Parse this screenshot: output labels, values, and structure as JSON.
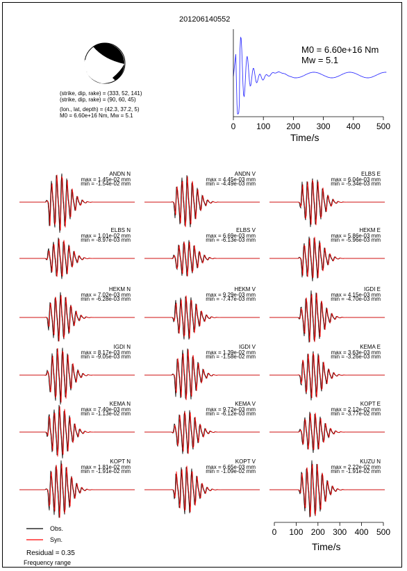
{
  "event": {
    "id": "201206140552",
    "mechanism_lines": [
      "(strike, dip, rake) = (333, 52, 141)",
      "(strike, dip, rake) = (90, 60, 45)",
      "(lon., lat, depth) = (42.3, 37.2, 5)",
      "M0 = 6.60e+16 Nm, Mw = 5.1"
    ]
  },
  "stf": {
    "m0_label": "M0 = 6.60e+16 Nm",
    "mw_label": "Mw = 5.1",
    "x_label": "Time/s",
    "x_ticks": [
      "0",
      "100",
      "200",
      "300",
      "400",
      "500"
    ],
    "color": "#3333ff"
  },
  "waveforms": [
    {
      "station": "ANDN N",
      "max": "max = 1.45e-02 mm",
      "min": "min = -1.54e-02 mm",
      "amp": 1.45
    },
    {
      "station": "ANDN V",
      "max": "max = 4.45e-03 mm",
      "min": "min = -4.49e-03 mm",
      "amp": 1.3
    },
    {
      "station": "ELBS E",
      "max": "max = 6.04e-03 mm",
      "min": "min = -5.34e-03 mm",
      "amp": 1.2
    },
    {
      "station": "ELBS N",
      "max": "max = 1.01e-02 mm",
      "min": "min = -8.97e-03 mm",
      "amp": 1.0
    },
    {
      "station": "ELBS V",
      "max": "max = 6.69e-03 mm",
      "min": "min = -6.13e-03 mm",
      "amp": 0.9
    },
    {
      "station": "HEKM E",
      "max": "max = 5.86e-03 mm",
      "min": "min = -5.96e-03 mm",
      "amp": 1.1
    },
    {
      "station": "HEKM N",
      "max": "max = 7.02e-03 mm",
      "min": "min = -6.28e-03 mm",
      "amp": 1.2
    },
    {
      "station": "HEKM V",
      "max": "max = 9.29e-03 mm",
      "min": "min = -7.47e-03 mm",
      "amp": 1.1
    },
    {
      "station": "IGDI E",
      "max": "max = 4.15e-03 mm",
      "min": "min = -4.70e-03 mm",
      "amp": 1.3
    },
    {
      "station": "IGDI N",
      "max": "max = 8.17e-03 mm",
      "min": "min = -9.05e-03 mm",
      "amp": 1.4
    },
    {
      "station": "IGDI V",
      "max": "max = 1.39e-02 mm",
      "min": "min = -1.58e-02 mm",
      "amp": 1.3
    },
    {
      "station": "KEMA E",
      "max": "max = 3.63e-03 mm",
      "min": "min = -3.26e-03 mm",
      "amp": 1.2
    },
    {
      "station": "KEMA N",
      "max": "max = 7.40e-03 mm",
      "min": "min = -1.13e-02 mm",
      "amp": 1.3
    },
    {
      "station": "KEMA V",
      "max": "max = 9.72e-03 mm",
      "min": "min = -6.12e-03 mm",
      "amp": 1.1
    },
    {
      "station": "KOPT E",
      "max": "max = 2.12e-02 mm",
      "min": "min = -3.77e-02 mm",
      "amp": 1.0
    },
    {
      "station": "KOPT N",
      "max": "max = 1.81e-02 mm",
      "min": "min = -1.91e-02 mm",
      "amp": 1.4
    },
    {
      "station": "KOPT V",
      "max": "max = 6.65e-03 mm",
      "min": "min = -1.09e-02 mm",
      "amp": 1.2
    },
    {
      "station": "KUZU N",
      "max": "max = 2.22e-02 mm",
      "min": "min = -1.91e-02 mm",
      "amp": 1.4
    }
  ],
  "waveform_axis": {
    "x_label": "Time/s",
    "x_ticks": [
      "0",
      "100",
      "200",
      "300",
      "400",
      "500"
    ]
  },
  "legend": {
    "obs_label": "Obs.",
    "syn_label": "Syn.",
    "obs_color": "#000000",
    "syn_color": "#ff0000"
  },
  "residual": "Residual = 0.35",
  "frequency_range": "Frequency range"
}
